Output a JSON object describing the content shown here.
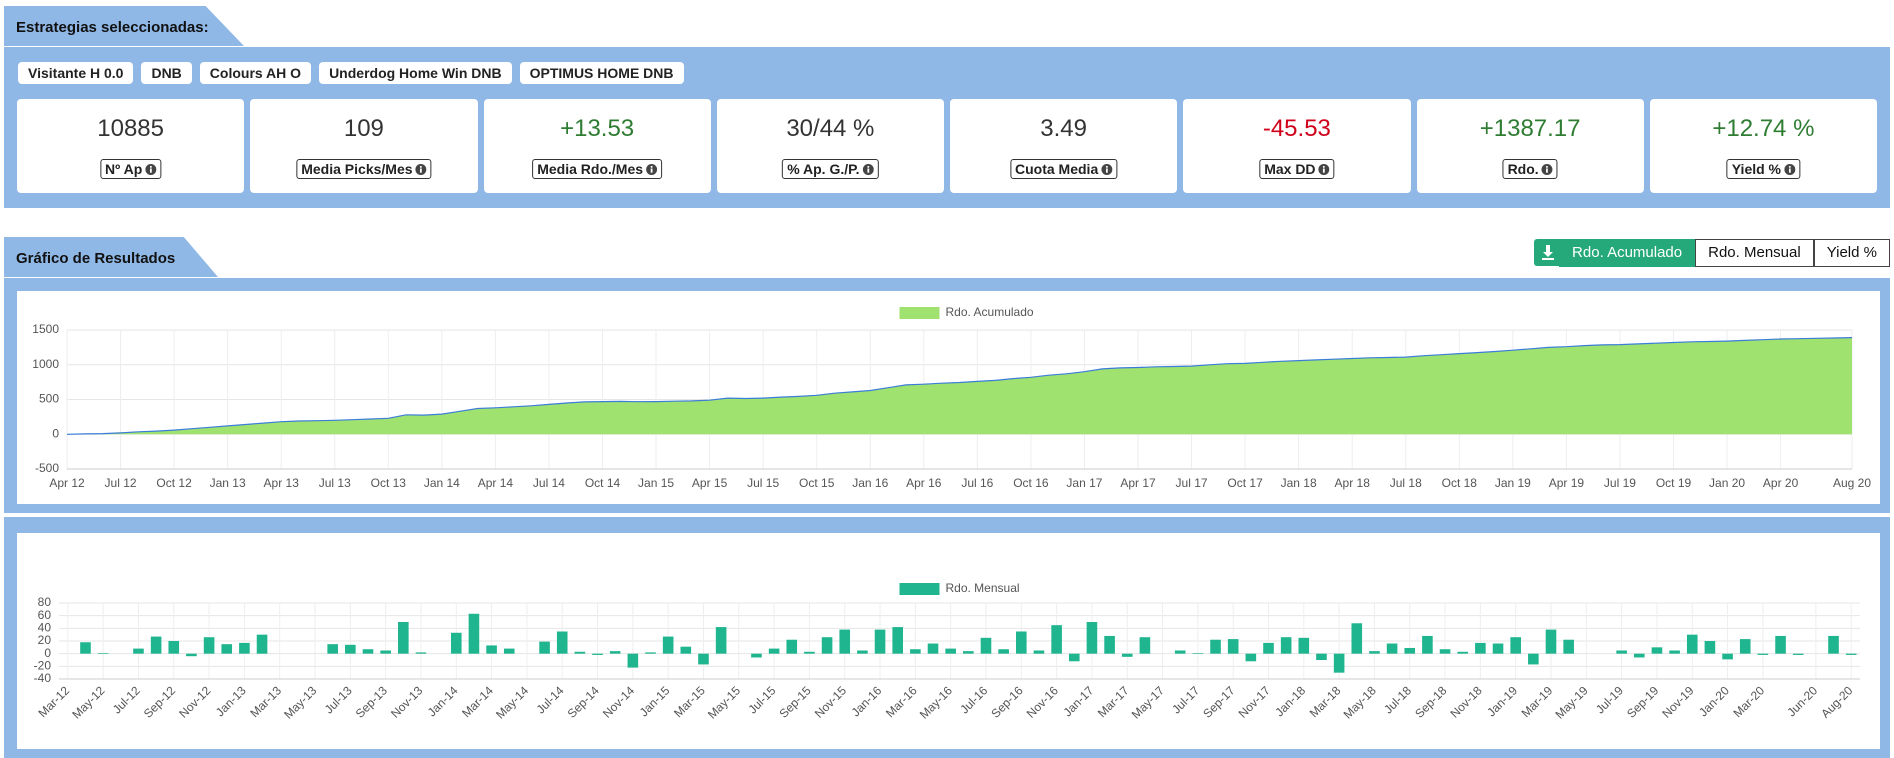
{
  "sections": {
    "strategies": "Estrategias seleccionadas:",
    "results": "Gráfico de Resultados"
  },
  "strategies": [
    "Visitante H 0.0",
    "DNB",
    "Colours AH O",
    "Underdog Home Win DNB",
    "OPTIMUS HOME DNB"
  ],
  "stats": [
    {
      "value": "10885",
      "label": "Nº Ap",
      "color": "#333333"
    },
    {
      "value": "109",
      "label": "Media Picks/Mes",
      "color": "#333333"
    },
    {
      "value": "+13.53",
      "label": "Media Rdo./Mes",
      "color": "#2e7d32"
    },
    {
      "value": "30/44 %",
      "label": "% Ap. G./P.",
      "color": "#333333"
    },
    {
      "value": "3.49",
      "label": "Cuota Media",
      "color": "#333333"
    },
    {
      "value": "-45.53",
      "label": "Max DD",
      "color": "#d0021b"
    },
    {
      "value": "+1387.17",
      "label": "Rdo.",
      "color": "#2e7d32"
    },
    {
      "value": "+12.74 %",
      "label": "Yield %",
      "color": "#2e7d32"
    }
  ],
  "buttons": [
    {
      "label": "Rdo. Acumulado",
      "active": true
    },
    {
      "label": "Rdo. Mensual",
      "active": false
    },
    {
      "label": "Yield %",
      "active": false
    }
  ],
  "chart_data": [
    {
      "type": "area",
      "series": [
        {
          "name": "Rdo. Acumulado",
          "color": "#a0e270",
          "line_color": "#3b7dd8",
          "values": [
            0,
            5,
            10,
            20,
            35,
            45,
            60,
            80,
            100,
            120,
            140,
            160,
            180,
            190,
            195,
            200,
            210,
            220,
            230,
            280,
            275,
            290,
            330,
            370,
            380,
            395,
            410,
            430,
            450,
            465,
            470,
            472,
            468,
            470,
            475,
            480,
            490,
            520,
            515,
            520,
            535,
            545,
            560,
            590,
            610,
            630,
            670,
            710,
            720,
            735,
            745,
            760,
            775,
            800,
            820,
            850,
            870,
            900,
            940,
            955,
            960,
            970,
            975,
            980,
            1000,
            1015,
            1020,
            1035,
            1050,
            1060,
            1070,
            1080,
            1090,
            1100,
            1105,
            1110,
            1130,
            1145,
            1160,
            1175,
            1190,
            1210,
            1230,
            1250,
            1260,
            1275,
            1285,
            1290,
            1300,
            1310,
            1320,
            1330,
            1335,
            1340,
            1350,
            1360,
            1370,
            1375,
            1380,
            1385,
            1390
          ]
        }
      ],
      "categories": [
        "Apr 12",
        null,
        null,
        "Jul 12",
        null,
        null,
        "Oct 12",
        null,
        null,
        "Jan 13",
        null,
        null,
        "Apr 13",
        null,
        null,
        "Jul 13",
        null,
        null,
        "Oct 13",
        null,
        null,
        "Jan 14",
        null,
        null,
        "Apr 14",
        null,
        null,
        "Jul 14",
        null,
        null,
        "Oct 14",
        null,
        null,
        "Jan 15",
        null,
        null,
        "Apr 15",
        null,
        null,
        "Jul 15",
        null,
        null,
        "Oct 15",
        null,
        null,
        "Jan 16",
        null,
        null,
        "Apr 16",
        null,
        null,
        "Jul 16",
        null,
        null,
        "Oct 16",
        null,
        null,
        "Jan 17",
        null,
        null,
        "Apr 17",
        null,
        null,
        "Jul 17",
        null,
        null,
        "Oct 17",
        null,
        null,
        "Jan 18",
        null,
        null,
        "Apr 18",
        null,
        null,
        "Jul 18",
        null,
        null,
        "Oct 18",
        null,
        null,
        "Jan 19",
        null,
        null,
        "Apr 19",
        null,
        null,
        "Jul 19",
        null,
        null,
        "Oct 19",
        null,
        null,
        "Jan 20",
        null,
        null,
        "Apr 20",
        null,
        null,
        null,
        "Aug 20"
      ],
      "ylim": [
        -500,
        1500
      ],
      "yticks": [
        -500,
        0,
        500,
        1000,
        1500
      ],
      "grid": true
    },
    {
      "type": "bar",
      "series": [
        {
          "name": "Rdo. Mensual",
          "color": "#1fb58f",
          "values": [
            0,
            18,
            1,
            0,
            8,
            27,
            20,
            -4,
            26,
            15,
            17,
            30,
            0,
            0,
            0,
            15,
            14,
            7,
            5,
            50,
            2,
            0,
            33,
            63,
            13,
            8,
            0,
            19,
            35,
            3,
            -2,
            4,
            -22,
            2,
            27,
            11,
            -17,
            42,
            0,
            -6,
            8,
            22,
            3,
            26,
            38,
            5,
            38,
            42,
            7,
            16,
            8,
            4,
            25,
            7,
            35,
            5,
            45,
            -12,
            50,
            28,
            -5,
            26,
            0,
            5,
            1,
            22,
            23,
            -12,
            17,
            26,
            25,
            -10,
            -30,
            48,
            4,
            16,
            9,
            28,
            7,
            3,
            17,
            16,
            26,
            -17,
            38,
            22,
            0,
            0,
            5,
            -6,
            10,
            5,
            30,
            20,
            -9,
            23,
            -2,
            28,
            -2,
            0,
            28,
            -2
          ]
        }
      ],
      "categories": [
        "Mar-12",
        null,
        "May-12",
        null,
        "Jul-12",
        null,
        "Sep-12",
        null,
        "Nov-12",
        null,
        "Jan-13",
        null,
        "Mar-13",
        null,
        "May-13",
        null,
        "Jul-13",
        null,
        "Sep-13",
        null,
        "Nov-13",
        null,
        "Jan-14",
        null,
        "Mar-14",
        null,
        "May-14",
        null,
        "Jul-14",
        null,
        "Sep-14",
        null,
        "Nov-14",
        null,
        "Jan-15",
        null,
        "Mar-15",
        null,
        "May-15",
        null,
        "Jul-15",
        null,
        "Sep-15",
        null,
        "Nov-15",
        null,
        "Jan-16",
        null,
        "Mar-16",
        null,
        "May-16",
        null,
        "Jul-16",
        null,
        "Sep-16",
        null,
        "Nov-16",
        null,
        "Jan-17",
        null,
        "Mar-17",
        null,
        "May-17",
        null,
        "Jul-17",
        null,
        "Sep-17",
        null,
        "Nov-17",
        null,
        "Jan-18",
        null,
        "Mar-18",
        null,
        "May-18",
        null,
        "Jul-18",
        null,
        "Sep-18",
        null,
        "Nov-18",
        null,
        "Jan-19",
        null,
        "Mar-19",
        null,
        "May-19",
        null,
        "Jul-19",
        null,
        "Sep-19",
        null,
        "Nov-19",
        null,
        "Jan-20",
        null,
        "Mar-20",
        null,
        null,
        "Jun-20",
        null,
        "Aug-20"
      ],
      "ylim": [
        -40,
        80
      ],
      "yticks": [
        -40,
        -20,
        0,
        20,
        40,
        60,
        80
      ],
      "grid": true
    }
  ]
}
